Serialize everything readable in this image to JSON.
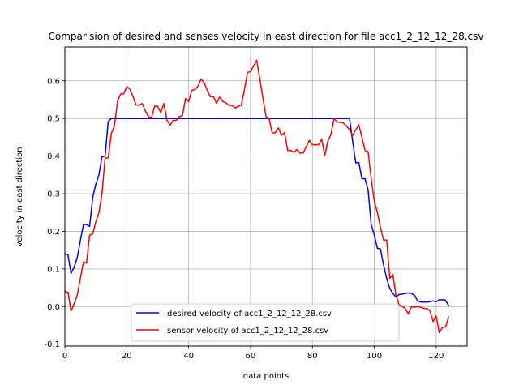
{
  "chart_data": {
    "type": "line",
    "title": "Comparision of desired and senses velocity in east direction for file acc1_2_12_12_28.csv",
    "xlabel": "data points",
    "ylabel": "velocity in east direction",
    "xlim": [
      0,
      130
    ],
    "ylim": [
      -0.105,
      0.69
    ],
    "xticks": [
      0,
      20,
      40,
      60,
      80,
      100,
      120
    ],
    "yticks": [
      -0.1,
      0.0,
      0.1,
      0.2,
      0.3,
      0.4,
      0.5,
      0.6
    ],
    "grid": true,
    "legend_position": "lower center",
    "series": [
      {
        "name": "desired velocity of acc1_2_12_12_28.csv",
        "color": "#0000ff",
        "x": [
          0,
          1,
          2,
          3,
          4,
          5,
          6,
          7,
          8,
          9,
          10,
          11,
          12,
          13,
          14,
          15,
          16,
          17,
          18,
          19,
          20,
          21,
          22,
          23,
          24,
          25,
          26,
          27,
          28,
          29,
          30,
          31,
          32,
          33,
          34,
          35,
          36,
          37,
          38,
          39,
          40,
          41,
          42,
          43,
          44,
          45,
          46,
          47,
          48,
          49,
          50,
          51,
          52,
          53,
          54,
          55,
          56,
          57,
          58,
          59,
          60,
          61,
          62,
          63,
          64,
          65,
          66,
          67,
          68,
          69,
          70,
          71,
          72,
          73,
          74,
          75,
          76,
          77,
          78,
          79,
          80,
          81,
          82,
          83,
          84,
          85,
          86,
          87,
          88,
          89,
          90,
          91,
          92,
          93,
          94,
          95,
          96,
          97,
          98,
          99,
          100,
          101,
          102,
          103,
          104,
          105,
          106,
          107,
          108,
          109,
          110,
          111,
          112,
          113,
          114,
          115,
          116,
          117,
          118,
          119,
          120,
          121,
          122,
          123,
          124
        ],
        "y": [
          0.14,
          0.138,
          0.088,
          0.105,
          0.13,
          0.175,
          0.218,
          0.218,
          0.213,
          0.29,
          0.325,
          0.35,
          0.398,
          0.4,
          0.492,
          0.5,
          0.5,
          0.5,
          0.5,
          0.5,
          0.5,
          0.5,
          0.5,
          0.5,
          0.5,
          0.5,
          0.5,
          0.5,
          0.5,
          0.5,
          0.5,
          0.5,
          0.5,
          0.5,
          0.5,
          0.5,
          0.5,
          0.5,
          0.5,
          0.5,
          0.5,
          0.5,
          0.5,
          0.5,
          0.5,
          0.5,
          0.5,
          0.5,
          0.5,
          0.5,
          0.5,
          0.5,
          0.5,
          0.5,
          0.5,
          0.5,
          0.5,
          0.5,
          0.5,
          0.5,
          0.5,
          0.5,
          0.5,
          0.5,
          0.5,
          0.5,
          0.5,
          0.5,
          0.5,
          0.5,
          0.5,
          0.5,
          0.5,
          0.5,
          0.5,
          0.5,
          0.5,
          0.5,
          0.5,
          0.5,
          0.5,
          0.5,
          0.5,
          0.5,
          0.5,
          0.5,
          0.5,
          0.5,
          0.5,
          0.5,
          0.5,
          0.5,
          0.5,
          0.44,
          0.382,
          0.383,
          0.34,
          0.34,
          0.31,
          0.218,
          0.19,
          0.155,
          0.153,
          0.11,
          0.075,
          0.048,
          0.035,
          0.025,
          0.032,
          0.033,
          0.035,
          0.036,
          0.035,
          0.03,
          0.015,
          0.012,
          0.012,
          0.012,
          0.013,
          0.015,
          0.013,
          0.018,
          0.018,
          0.017,
          0.003
        ]
      },
      {
        "name": "sensor velocity of acc1_2_12_12_28.csv",
        "color": "#ff0000",
        "x": [
          0,
          1,
          2,
          3,
          4,
          5,
          6,
          7,
          8,
          9,
          10,
          11,
          12,
          13,
          14,
          15,
          16,
          17,
          18,
          19,
          20,
          21,
          22,
          23,
          24,
          25,
          26,
          27,
          28,
          29,
          30,
          31,
          32,
          33,
          34,
          35,
          36,
          37,
          38,
          39,
          40,
          41,
          42,
          43,
          44,
          45,
          46,
          47,
          48,
          49,
          50,
          51,
          52,
          53,
          54,
          55,
          56,
          57,
          58,
          59,
          60,
          61,
          62,
          63,
          64,
          65,
          66,
          67,
          68,
          69,
          70,
          71,
          72,
          73,
          74,
          75,
          76,
          77,
          78,
          79,
          80,
          81,
          82,
          83,
          84,
          85,
          86,
          87,
          88,
          89,
          90,
          91,
          92,
          93,
          94,
          95,
          96,
          97,
          98,
          99,
          100,
          101,
          102,
          103,
          104,
          105,
          106,
          107,
          108,
          109,
          110,
          111,
          112,
          113,
          114,
          115,
          116,
          117,
          118,
          119,
          120,
          121,
          122,
          123,
          124
        ],
        "y": [
          0.04,
          0.038,
          -0.012,
          0.008,
          0.03,
          0.075,
          0.118,
          0.115,
          0.19,
          0.193,
          0.225,
          0.25,
          0.3,
          0.395,
          0.395,
          0.46,
          0.48,
          0.545,
          0.565,
          0.565,
          0.585,
          0.578,
          0.558,
          0.536,
          0.535,
          0.54,
          0.52,
          0.505,
          0.502,
          0.533,
          0.532,
          0.515,
          0.54,
          0.495,
          0.482,
          0.495,
          0.495,
          0.505,
          0.508,
          0.553,
          0.545,
          0.575,
          0.577,
          0.585,
          0.605,
          0.595,
          0.575,
          0.558,
          0.558,
          0.54,
          0.557,
          0.545,
          0.542,
          0.535,
          0.535,
          0.528,
          0.532,
          0.535,
          0.575,
          0.622,
          0.625,
          0.64,
          0.655,
          0.605,
          0.555,
          0.505,
          0.5,
          0.462,
          0.462,
          0.475,
          0.455,
          0.463,
          0.415,
          0.415,
          0.41,
          0.418,
          0.408,
          0.408,
          0.425,
          0.442,
          0.43,
          0.43,
          0.43,
          0.445,
          0.402,
          0.44,
          0.458,
          0.5,
          0.49,
          0.49,
          0.488,
          0.48,
          0.47,
          0.455,
          0.47,
          0.483,
          0.45,
          0.415,
          0.412,
          0.34,
          0.28,
          0.25,
          0.21,
          0.177,
          0.177,
          0.075,
          0.085,
          0.03,
          0.005,
          0.0,
          -0.005,
          -0.02,
          0.0,
          -0.002,
          0.0,
          -0.002,
          -0.005,
          -0.005,
          -0.012,
          -0.04,
          -0.025,
          -0.07,
          -0.055,
          -0.055,
          -0.028
        ]
      }
    ]
  }
}
